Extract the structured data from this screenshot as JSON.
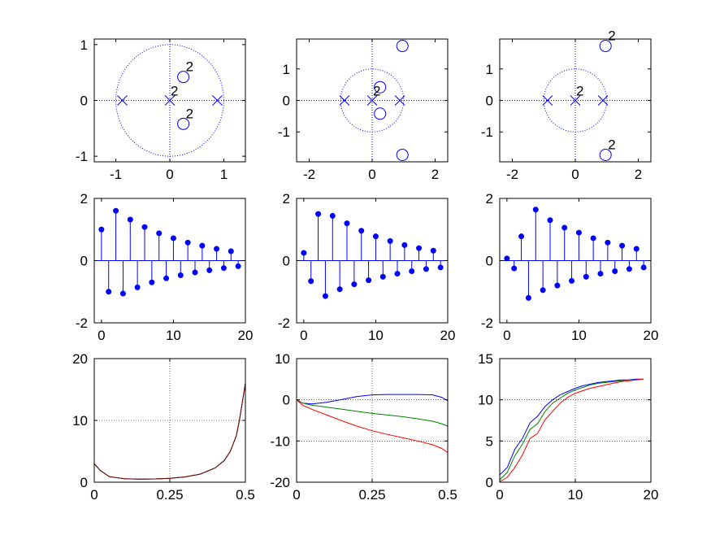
{
  "colors": {
    "blue": "#0000ff",
    "green": "#008000",
    "red": "#ff0000",
    "dark_red": "#800000",
    "axis": "#000000",
    "grid": "#000000"
  },
  "chart_data": [
    {
      "type": "scatter",
      "subtype": "pole-zero",
      "title": "",
      "xlabel": "",
      "ylabel": "",
      "xlim": [
        -1.4,
        1.4
      ],
      "ylim": [
        -1.1,
        1.1
      ],
      "xticks": [
        -1,
        0,
        1
      ],
      "yticks": [
        -1,
        0,
        1
      ],
      "xticklabels": [
        "-1",
        "0",
        "1"
      ],
      "yticklabels": [
        "-1",
        "0",
        "1"
      ],
      "grid": false,
      "unit_circle": true,
      "zeros": [
        {
          "x": 0.25,
          "y": 0.42,
          "mult": "2"
        },
        {
          "x": 0.25,
          "y": -0.42,
          "mult": "2"
        }
      ],
      "poles": [
        {
          "x": -0.88,
          "y": 0
        },
        {
          "x": 0,
          "y": 0,
          "mult": "2"
        },
        {
          "x": 0.88,
          "y": 0
        }
      ]
    },
    {
      "type": "scatter",
      "subtype": "pole-zero",
      "title": "",
      "xlabel": "",
      "ylabel": "",
      "xlim": [
        -2.4,
        2.4
      ],
      "ylim": [
        -1.95,
        1.95
      ],
      "xticks": [
        -2,
        0,
        2
      ],
      "yticks": [
        -1,
        0,
        1
      ],
      "xticklabels": [
        "-2",
        "0",
        "2"
      ],
      "yticklabels": [
        "-1",
        "0",
        "1"
      ],
      "grid": false,
      "unit_circle": true,
      "zeros": [
        {
          "x": 0.25,
          "y": 0.42
        },
        {
          "x": 0.25,
          "y": -0.42
        },
        {
          "x": 0.96,
          "y": 1.73
        },
        {
          "x": 0.96,
          "y": -1.73
        }
      ],
      "poles": [
        {
          "x": -0.88,
          "y": 0
        },
        {
          "x": 0,
          "y": 0,
          "mult": "2"
        },
        {
          "x": 0.88,
          "y": 0
        }
      ]
    },
    {
      "type": "scatter",
      "subtype": "pole-zero",
      "title": "",
      "xlabel": "",
      "ylabel": "",
      "xlim": [
        -2.4,
        2.4
      ],
      "ylim": [
        -1.95,
        1.95
      ],
      "xticks": [
        -2,
        0,
        2
      ],
      "yticks": [
        -1,
        0,
        1
      ],
      "xticklabels": [
        "-2",
        "0",
        "2"
      ],
      "yticklabels": [
        "-1",
        "0",
        "1"
      ],
      "grid": false,
      "unit_circle": true,
      "zeros": [
        {
          "x": 0.96,
          "y": 1.73,
          "mult": "2"
        },
        {
          "x": 0.96,
          "y": -1.73,
          "mult": "2"
        }
      ],
      "poles": [
        {
          "x": -0.88,
          "y": 0
        },
        {
          "x": 0,
          "y": 0,
          "mult": "2"
        },
        {
          "x": 0.88,
          "y": 0
        }
      ]
    },
    {
      "type": "scatter",
      "subtype": "stem",
      "title": "",
      "xlabel": "",
      "ylabel": "",
      "xlim": [
        -1,
        20
      ],
      "ylim": [
        -2,
        2
      ],
      "xticks": [
        0,
        10,
        20
      ],
      "yticks": [
        -2,
        0,
        2
      ],
      "xticklabels": [
        "0",
        "10",
        "20"
      ],
      "yticklabels": [
        "-2",
        "0",
        "2"
      ],
      "grid": false,
      "x": [
        0,
        1,
        2,
        3,
        4,
        5,
        6,
        7,
        8,
        9,
        10,
        11,
        12,
        13,
        14,
        15,
        16,
        17,
        18,
        19
      ],
      "values": [
        1.0,
        -1.0,
        1.6,
        -1.06,
        1.32,
        -0.86,
        1.08,
        -0.7,
        0.88,
        -0.57,
        0.72,
        -0.47,
        0.58,
        -0.38,
        0.48,
        -0.31,
        0.38,
        -0.24,
        0.3,
        -0.18
      ]
    },
    {
      "type": "scatter",
      "subtype": "stem",
      "title": "",
      "xlabel": "",
      "ylabel": "",
      "xlim": [
        -1,
        20
      ],
      "ylim": [
        -2,
        2
      ],
      "xticks": [
        0,
        10,
        20
      ],
      "yticks": [
        -2,
        0,
        2
      ],
      "xticklabels": [
        "0",
        "10",
        "20"
      ],
      "yticklabels": [
        "-2",
        "0",
        "2"
      ],
      "grid": false,
      "x": [
        0,
        1,
        2,
        3,
        4,
        5,
        6,
        7,
        8,
        9,
        10,
        11,
        12,
        13,
        14,
        15,
        16,
        17,
        18,
        19
      ],
      "values": [
        0.25,
        -0.66,
        1.5,
        -1.14,
        1.44,
        -0.92,
        1.2,
        -0.76,
        0.96,
        -0.63,
        0.78,
        -0.52,
        0.63,
        -0.42,
        0.5,
        -0.34,
        0.4,
        -0.27,
        0.32,
        -0.22
      ]
    },
    {
      "type": "scatter",
      "subtype": "stem",
      "title": "",
      "xlabel": "",
      "ylabel": "",
      "xlim": [
        -1,
        20
      ],
      "ylim": [
        -2,
        2
      ],
      "xticks": [
        0,
        10,
        20
      ],
      "yticks": [
        -2,
        0,
        2
      ],
      "xticklabels": [
        "0",
        "10",
        "20"
      ],
      "yticklabels": [
        "-2",
        "0",
        "2"
      ],
      "grid": false,
      "x": [
        0,
        1,
        2,
        3,
        4,
        5,
        6,
        7,
        8,
        9,
        10,
        11,
        12,
        13,
        14,
        15,
        16,
        17,
        18,
        19
      ],
      "values": [
        0.07,
        -0.25,
        0.78,
        -1.2,
        1.64,
        -0.95,
        1.3,
        -0.8,
        1.06,
        -0.65,
        0.9,
        -0.52,
        0.72,
        -0.42,
        0.58,
        -0.34,
        0.48,
        -0.27,
        0.38,
        -0.22
      ]
    },
    {
      "type": "line",
      "title": "",
      "xlabel": "",
      "ylabel": "",
      "xlim": [
        0,
        0.5
      ],
      "ylim": [
        0,
        20
      ],
      "xticks": [
        0,
        0.25,
        0.5
      ],
      "yticks": [
        0,
        10,
        20
      ],
      "xticklabels": [
        "0",
        "0.25",
        "0.5"
      ],
      "yticklabels": [
        "0",
        "10",
        "20"
      ],
      "grid": true,
      "series": [
        {
          "color": "#0000ff",
          "x": [
            0,
            0.02,
            0.05,
            0.1,
            0.15,
            0.2,
            0.25,
            0.3,
            0.35,
            0.4,
            0.43,
            0.45,
            0.47,
            0.48,
            0.49,
            0.5
          ],
          "values": [
            3.0,
            1.9,
            0.9,
            0.55,
            0.5,
            0.52,
            0.62,
            0.85,
            1.3,
            2.3,
            3.5,
            5.0,
            7.5,
            10.0,
            13.0,
            16.0
          ]
        },
        {
          "color": "#008000",
          "x": [
            0,
            0.02,
            0.05,
            0.1,
            0.15,
            0.2,
            0.25,
            0.3,
            0.35,
            0.4,
            0.43,
            0.45,
            0.47,
            0.48,
            0.49,
            0.5
          ],
          "values": [
            3.0,
            1.9,
            0.9,
            0.55,
            0.5,
            0.52,
            0.62,
            0.85,
            1.3,
            2.3,
            3.5,
            5.0,
            7.5,
            10.0,
            13.0,
            16.0
          ]
        },
        {
          "color": "#800000",
          "x": [
            0,
            0.02,
            0.05,
            0.1,
            0.15,
            0.2,
            0.25,
            0.3,
            0.35,
            0.4,
            0.43,
            0.45,
            0.47,
            0.48,
            0.49,
            0.5
          ],
          "values": [
            3.0,
            1.9,
            0.9,
            0.55,
            0.5,
            0.52,
            0.62,
            0.85,
            1.3,
            2.3,
            3.5,
            5.0,
            7.5,
            10.0,
            13.0,
            16.0
          ]
        }
      ]
    },
    {
      "type": "line",
      "title": "",
      "xlabel": "",
      "ylabel": "",
      "xlim": [
        0,
        0.5
      ],
      "ylim": [
        -20,
        10
      ],
      "xticks": [
        0,
        0.25,
        0.5
      ],
      "yticks": [
        -20,
        -10,
        0,
        10
      ],
      "xticklabels": [
        "0",
        "0.25",
        "0.5"
      ],
      "yticklabels": [
        "-20",
        "-10",
        "0",
        "10"
      ],
      "grid": true,
      "series": [
        {
          "color": "#0000ff",
          "x": [
            0,
            0.02,
            0.05,
            0.1,
            0.15,
            0.2,
            0.25,
            0.3,
            0.35,
            0.4,
            0.45,
            0.48,
            0.5
          ],
          "values": [
            0,
            -0.8,
            -1.0,
            -0.6,
            0.1,
            0.8,
            1.2,
            1.3,
            1.3,
            1.3,
            1.2,
            0.6,
            -0.2
          ]
        },
        {
          "color": "#008000",
          "x": [
            0,
            0.02,
            0.05,
            0.1,
            0.15,
            0.2,
            0.25,
            0.3,
            0.35,
            0.4,
            0.45,
            0.48,
            0.5
          ],
          "values": [
            0,
            -0.8,
            -1.3,
            -1.8,
            -2.3,
            -2.8,
            -3.3,
            -3.7,
            -4.1,
            -4.6,
            -5.2,
            -5.8,
            -6.4
          ]
        },
        {
          "color": "#ff0000",
          "x": [
            0,
            0.02,
            0.05,
            0.1,
            0.15,
            0.2,
            0.25,
            0.3,
            0.35,
            0.4,
            0.45,
            0.48,
            0.5
          ],
          "values": [
            0,
            -1.3,
            -2.3,
            -3.7,
            -5.1,
            -6.4,
            -7.5,
            -8.4,
            -9.2,
            -10.0,
            -10.9,
            -11.8,
            -12.8
          ]
        }
      ]
    },
    {
      "type": "line",
      "title": "",
      "xlabel": "",
      "ylabel": "",
      "xlim": [
        0,
        20
      ],
      "ylim": [
        0,
        15
      ],
      "xticks": [
        0,
        10,
        20
      ],
      "yticks": [
        0,
        5,
        10,
        15
      ],
      "xticklabels": [
        "0",
        "10",
        "20"
      ],
      "yticklabels": [
        "0",
        "5",
        "10",
        "15"
      ],
      "grid": true,
      "series": [
        {
          "color": "#0000ff",
          "x": [
            0,
            1,
            2,
            3,
            4,
            5,
            6,
            7,
            8,
            9,
            10,
            11,
            12,
            13,
            14,
            15,
            16,
            17,
            18,
            19
          ],
          "values": [
            0.9,
            1.8,
            4.0,
            5.3,
            7.2,
            8.0,
            9.2,
            10.0,
            10.6,
            11.0,
            11.4,
            11.7,
            11.9,
            12.1,
            12.2,
            12.3,
            12.4,
            12.4,
            12.5,
            12.5
          ]
        },
        {
          "color": "#008000",
          "x": [
            0,
            1,
            2,
            3,
            4,
            5,
            6,
            7,
            8,
            9,
            10,
            11,
            12,
            13,
            14,
            15,
            16,
            17,
            18,
            19
          ],
          "values": [
            0.3,
            1.2,
            3.2,
            4.6,
            6.4,
            7.1,
            8.6,
            9.6,
            10.2,
            10.8,
            11.2,
            11.5,
            11.8,
            12.0,
            12.1,
            12.2,
            12.3,
            12.4,
            12.4,
            12.5
          ]
        },
        {
          "color": "#ff0000",
          "x": [
            0,
            1,
            2,
            3,
            4,
            5,
            6,
            7,
            8,
            9,
            10,
            11,
            12,
            13,
            14,
            15,
            16,
            17,
            18,
            19
          ],
          "values": [
            0.05,
            0.6,
            1.8,
            3.3,
            5.3,
            5.9,
            7.6,
            8.6,
            9.6,
            10.3,
            10.8,
            11.1,
            11.4,
            11.6,
            11.8,
            12.0,
            12.2,
            12.3,
            12.4,
            12.5
          ]
        }
      ]
    }
  ]
}
